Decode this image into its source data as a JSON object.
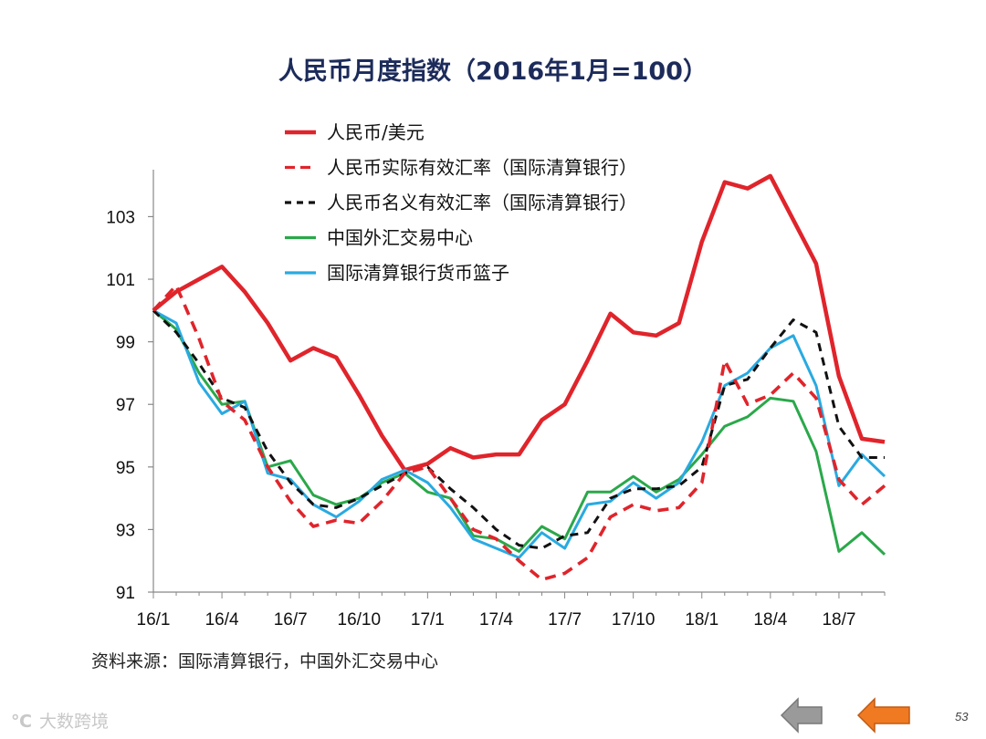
{
  "chart_data": {
    "type": "line",
    "title": "人民币月度指数（2016年1月=100）",
    "xlabel": "",
    "ylabel": "",
    "ylim": [
      91,
      104.5
    ],
    "yticks": [
      91,
      93,
      95,
      97,
      99,
      101,
      103
    ],
    "x_tick_labels": [
      "16/1",
      "16/4",
      "16/7",
      "16/10",
      "17/1",
      "17/4",
      "17/7",
      "17/10",
      "18/1",
      "18/4",
      "18/7"
    ],
    "grid": false,
    "legend_position": "top-left",
    "series": [
      {
        "name": "人民币/美元",
        "color": "#e0242b",
        "dash": "solid",
        "values": [
          100,
          100.6,
          101.0,
          101.4,
          100.6,
          99.6,
          98.4,
          98.8,
          98.5,
          97.3,
          96.0,
          94.9,
          95.1,
          95.6,
          95.3,
          95.4,
          95.4,
          96.5,
          97.0,
          98.4,
          99.9,
          99.3,
          99.2,
          99.6,
          102.2,
          104.1,
          103.9,
          104.3,
          102.9,
          101.5,
          97.9,
          95.9,
          95.8
        ]
      },
      {
        "name": "人民币实际有效汇率（国际清算银行）",
        "color": "#e0242b",
        "dash": "dashed",
        "values": [
          100,
          100.8,
          99.1,
          97.1,
          96.5,
          95.0,
          93.9,
          93.1,
          93.3,
          93.2,
          93.9,
          94.8,
          95.0,
          94.0,
          93.0,
          92.7,
          92.0,
          91.4,
          91.6,
          92.1,
          93.4,
          93.8,
          93.6,
          93.7,
          94.5,
          98.4,
          97.0,
          97.3,
          98.0,
          97.2,
          94.6,
          93.8,
          94.4
        ]
      },
      {
        "name": "人民币名义有效汇率（国际清算银行）",
        "color": "#111111",
        "dash": "dashed",
        "values": [
          100,
          99.3,
          98.3,
          97.2,
          96.9,
          95.5,
          94.5,
          93.8,
          93.7,
          94.0,
          94.4,
          94.8,
          95.0,
          94.3,
          93.7,
          93.0,
          92.5,
          92.4,
          92.8,
          92.9,
          94.0,
          94.3,
          94.3,
          94.4,
          95.0,
          97.6,
          97.8,
          98.8,
          99.7,
          99.3,
          96.3,
          95.3,
          95.3
        ]
      },
      {
        "name": "中国外汇交易中心",
        "color": "#2aa84a",
        "dash": "solid",
        "values": [
          100,
          99.4,
          98.0,
          97.0,
          97.1,
          95.0,
          95.2,
          94.1,
          93.8,
          94.0,
          94.5,
          94.8,
          94.2,
          94.0,
          92.8,
          92.7,
          92.3,
          93.1,
          92.7,
          94.2,
          94.2,
          94.7,
          94.2,
          94.6,
          95.4,
          96.3,
          96.6,
          97.2,
          97.1,
          95.5,
          92.3,
          92.9,
          92.2
        ]
      },
      {
        "name": "国际清算银行货币篮子",
        "color": "#29aae1",
        "dash": "solid",
        "values": [
          100,
          99.6,
          97.7,
          96.7,
          97.1,
          94.8,
          94.6,
          93.8,
          93.4,
          93.9,
          94.6,
          94.9,
          94.5,
          93.7,
          92.7,
          92.4,
          92.1,
          92.9,
          92.4,
          93.8,
          93.9,
          94.5,
          94.0,
          94.5,
          95.8,
          97.6,
          98.0,
          98.8,
          99.2,
          97.6,
          94.4,
          95.4,
          94.7
        ]
      }
    ]
  },
  "source_note": "资料来源：国际清算银行，中国外汇交易中心",
  "watermark": {
    "mark": "℃",
    "text": "大数跨境"
  },
  "page_number": "53",
  "colors": {
    "title": "#1c2b5a",
    "prev_arrow": "#9a9a9a",
    "next_arrow": "#f07a22"
  }
}
